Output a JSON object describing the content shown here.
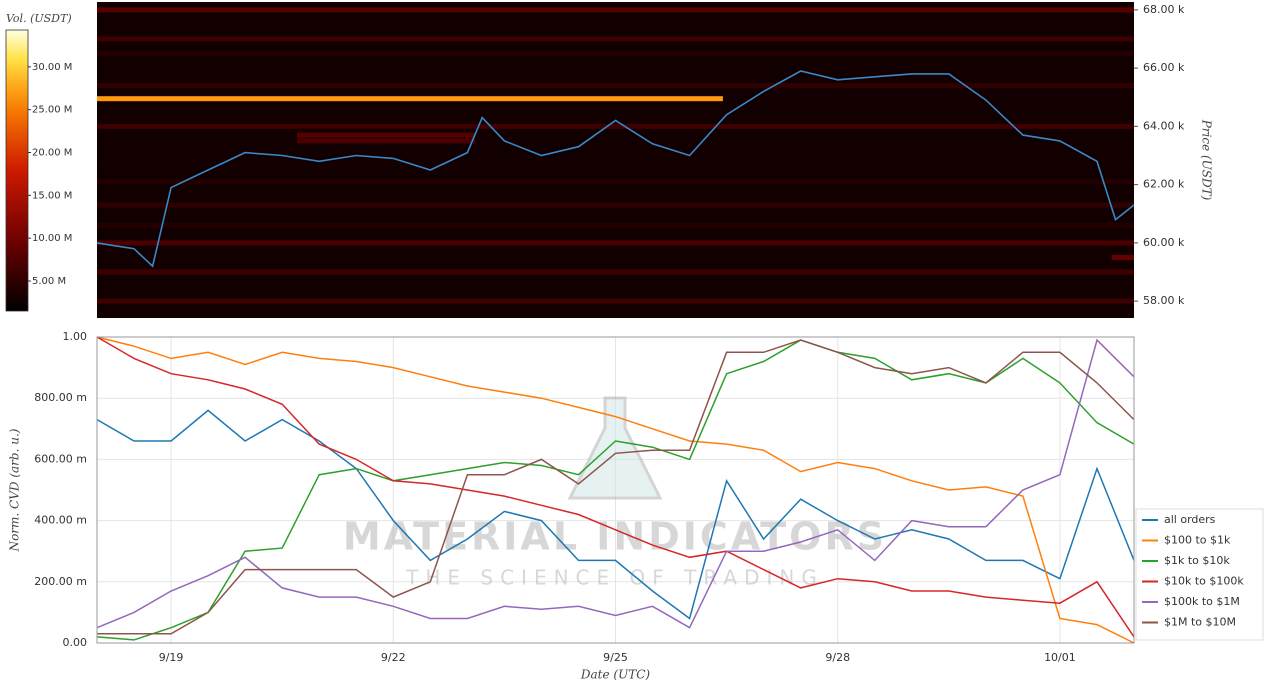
{
  "chart_data": [
    {
      "type": "heatmap",
      "colorbar_label": "Vol. (USDT)",
      "y_label": "Price (USDT)",
      "xlim": [
        0,
        14
      ],
      "ylim": [
        57420,
        68270
      ],
      "yticks": [
        {
          "value": 58000,
          "label": "58.00 k"
        },
        {
          "value": 60000,
          "label": "60.00 k"
        },
        {
          "value": 62000,
          "label": "62.00 k"
        },
        {
          "value": 64000,
          "label": "64.00 k"
        },
        {
          "value": 66000,
          "label": "66.00 k"
        },
        {
          "value": 68000,
          "label": "68.00 k"
        }
      ],
      "clim": [
        1500000,
        34300000
      ],
      "cticks": [
        {
          "value": 5000000,
          "label": "5.00 M"
        },
        {
          "value": 10000000,
          "label": "10.00 M"
        },
        {
          "value": 15000000,
          "label": "15.00 M"
        },
        {
          "value": 20000000,
          "label": "20.00 M"
        },
        {
          "value": 25000000,
          "label": "25.00 M"
        },
        {
          "value": 30000000,
          "label": "30.00 M"
        }
      ],
      "bands": {
        "price": [
          68000,
          67000,
          66500,
          65400,
          64000,
          63700,
          63500,
          62700,
          62100,
          61300,
          60600,
          60000,
          59500,
          59000,
          58000,
          64950
        ],
        "volume": [
          8000000,
          6000000,
          4000000,
          5000000,
          6000000,
          8000000,
          7000000,
          3000000,
          4000000,
          5000000,
          4000000,
          7000000,
          9000000,
          6000000,
          6000000,
          27000000
        ],
        "start": [
          0,
          0,
          0,
          0,
          0,
          2.7,
          2.7,
          0,
          0,
          0,
          0,
          0,
          13.7,
          0,
          0,
          0
        ],
        "end": [
          14,
          14,
          14,
          14,
          14,
          5.1,
          5.1,
          14,
          14,
          14,
          14,
          14,
          14,
          14,
          14,
          8.45
        ]
      },
      "price": {
        "color": "#3a87c8",
        "x": [
          0,
          0.5,
          0.75,
          1,
          1.5,
          2,
          2.5,
          3,
          3.5,
          4,
          4.5,
          5,
          5.2,
          5.5,
          6,
          6.5,
          7,
          7.5,
          8,
          8.5,
          9,
          9.5,
          10,
          10.5,
          11,
          11.5,
          12,
          12.5,
          13,
          13.5,
          13.75,
          14
        ],
        "values": [
          60000,
          59800,
          59200,
          61900,
          62500,
          63100,
          63000,
          62800,
          63000,
          62900,
          62500,
          63100,
          64300,
          63500,
          63000,
          63300,
          64200,
          63400,
          63000,
          64400,
          65200,
          65900,
          65600,
          65700,
          65800,
          65800,
          64900,
          63700,
          63500,
          62800,
          60800,
          61300
        ]
      }
    },
    {
      "type": "line",
      "x_label": "Date (UTC)",
      "y_label": "Norm. CVD (arb. u.)",
      "watermark": {
        "title": "MATERIAL INDICATORS",
        "subtitle": "THE SCIENCE OF TRADING"
      },
      "xlim": [
        0,
        14
      ],
      "xticks": [
        {
          "value": 1,
          "label": "9/19"
        },
        {
          "value": 4,
          "label": "9/22"
        },
        {
          "value": 7,
          "label": "9/25"
        },
        {
          "value": 10,
          "label": "9/28"
        },
        {
          "value": 13,
          "label": "10/01"
        }
      ],
      "ylim": [
        0,
        1
      ],
      "yticks": [
        {
          "value": 0,
          "label": "0.00"
        },
        {
          "value": 0.2,
          "label": "200.00 m"
        },
        {
          "value": 0.4,
          "label": "400.00 m"
        },
        {
          "value": 0.6,
          "label": "600.00 m"
        },
        {
          "value": 0.8,
          "label": "800.00 m"
        },
        {
          "value": 1,
          "label": "1.00"
        }
      ],
      "grid": true,
      "legend": "lower right",
      "x": [
        0,
        0.5,
        1,
        1.5,
        2,
        2.5,
        3,
        3.5,
        4,
        4.5,
        5,
        5.5,
        6,
        6.5,
        7,
        7.5,
        8,
        8.5,
        9,
        9.5,
        10,
        10.5,
        11,
        11.5,
        12,
        12.5,
        13,
        13.5,
        14
      ],
      "series": [
        {
          "name": "all orders",
          "color": "#1f77b4",
          "values": [
            0.73,
            0.66,
            0.66,
            0.76,
            0.66,
            0.73,
            0.66,
            0.57,
            0.4,
            0.27,
            0.34,
            0.43,
            0.4,
            0.27,
            0.27,
            0.17,
            0.08,
            0.53,
            0.34,
            0.47,
            0.4,
            0.34,
            0.37,
            0.34,
            0.27,
            0.27,
            0.21,
            0.57,
            0.27
          ]
        },
        {
          "name": "$100 to $1k",
          "color": "#ff7f0e",
          "values": [
            1.0,
            0.97,
            0.93,
            0.95,
            0.91,
            0.95,
            0.93,
            0.92,
            0.9,
            0.87,
            0.84,
            0.82,
            0.8,
            0.77,
            0.74,
            0.7,
            0.66,
            0.65,
            0.63,
            0.56,
            0.59,
            0.57,
            0.53,
            0.5,
            0.51,
            0.48,
            0.08,
            0.06,
            0.0
          ]
        },
        {
          "name": "$1k to $10k",
          "color": "#2ca02c",
          "values": [
            0.02,
            0.01,
            0.05,
            0.1,
            0.3,
            0.31,
            0.55,
            0.57,
            0.53,
            0.55,
            0.57,
            0.59,
            0.58,
            0.55,
            0.66,
            0.64,
            0.6,
            0.88,
            0.92,
            0.99,
            0.95,
            0.93,
            0.86,
            0.88,
            0.85,
            0.93,
            0.85,
            0.72,
            0.65
          ]
        },
        {
          "name": "$10k to $100k",
          "color": "#d62728",
          "values": [
            1.0,
            0.93,
            0.88,
            0.86,
            0.83,
            0.78,
            0.65,
            0.6,
            0.53,
            0.52,
            0.5,
            0.48,
            0.45,
            0.42,
            0.37,
            0.32,
            0.28,
            0.3,
            0.24,
            0.18,
            0.21,
            0.2,
            0.17,
            0.17,
            0.15,
            0.14,
            0.13,
            0.2,
            0.02
          ]
        },
        {
          "name": "$100k to $1M",
          "color": "#9467bd",
          "values": [
            0.05,
            0.1,
            0.17,
            0.22,
            0.28,
            0.18,
            0.15,
            0.15,
            0.12,
            0.08,
            0.08,
            0.12,
            0.11,
            0.12,
            0.09,
            0.12,
            0.05,
            0.3,
            0.3,
            0.33,
            0.37,
            0.27,
            0.4,
            0.38,
            0.38,
            0.5,
            0.55,
            0.99,
            0.87
          ]
        },
        {
          "name": "$1M to $10M",
          "color": "#8c564b",
          "values": [
            0.03,
            0.03,
            0.03,
            0.1,
            0.24,
            0.24,
            0.24,
            0.24,
            0.15,
            0.2,
            0.55,
            0.55,
            0.6,
            0.52,
            0.62,
            0.63,
            0.63,
            0.95,
            0.95,
            0.99,
            0.95,
            0.9,
            0.88,
            0.9,
            0.85,
            0.95,
            0.95,
            0.85,
            0.73
          ]
        }
      ]
    }
  ]
}
